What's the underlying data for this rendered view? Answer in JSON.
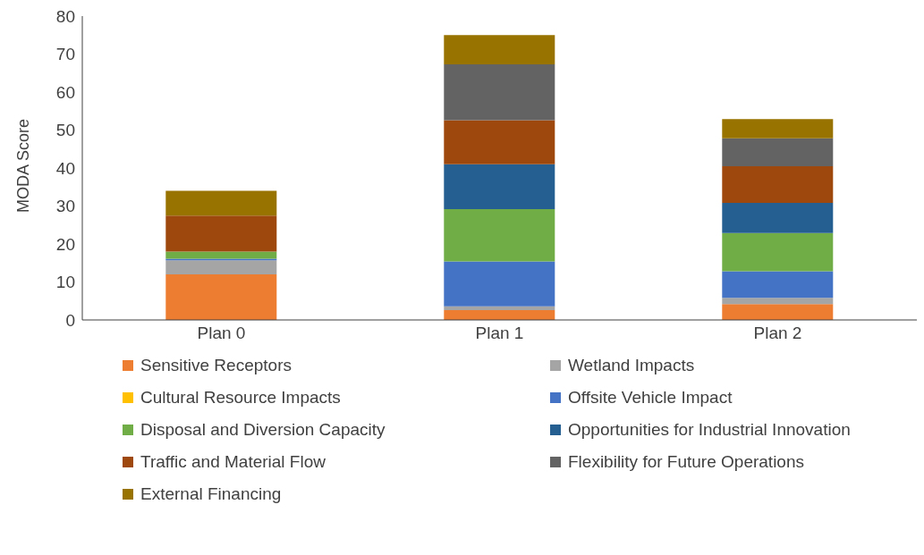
{
  "chart_data": {
    "type": "bar",
    "stacked": true,
    "ylabel": "MODA Score",
    "categories": [
      "Plan 0",
      "Plan 1",
      "Plan 2"
    ],
    "ylim": [
      0,
      80
    ],
    "yticks": [
      0,
      10,
      20,
      30,
      40,
      50,
      60,
      70,
      80
    ],
    "grid": false,
    "legend": "bottom",
    "series": [
      {
        "name": "Sensitive Receptors",
        "color": "#ed7d31",
        "values": [
          12,
          2.6,
          4.2
        ]
      },
      {
        "name": "Wetland Impacts",
        "color": "#a5a5a5",
        "values": [
          3.7,
          1.0,
          1.6
        ]
      },
      {
        "name": "Cultural Resource Impacts",
        "color": "#ffc000",
        "values": [
          0,
          0,
          0
        ]
      },
      {
        "name": "Offsite Vehicle Impact",
        "color": "#4472c4",
        "values": [
          0.4,
          11.8,
          7.0
        ]
      },
      {
        "name": "Disposal and Diversion Capacity",
        "color": "#70ad47",
        "values": [
          1.9,
          13.8,
          10.1
        ]
      },
      {
        "name": "Opportunities for Industrial Innovation",
        "color": "#255e91",
        "values": [
          0,
          11.8,
          7.9
        ]
      },
      {
        "name": "Traffic and Material Flow",
        "color": "#9e480e",
        "values": [
          9.5,
          11.6,
          9.7
        ]
      },
      {
        "name": "Flexibility for Future Operations",
        "color": "#636363",
        "values": [
          0,
          14.7,
          7.3
        ]
      },
      {
        "name": "External Financing",
        "color": "#997300",
        "values": [
          6.5,
          7.7,
          5.1
        ]
      }
    ]
  }
}
